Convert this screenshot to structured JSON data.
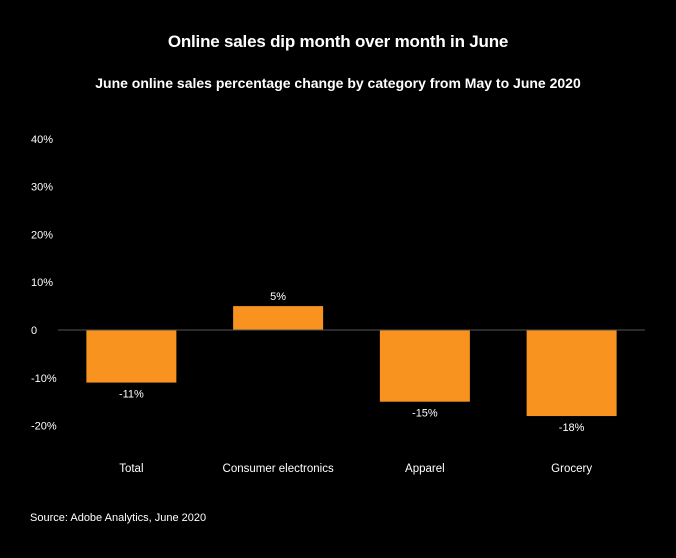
{
  "chart_data": {
    "type": "bar",
    "title": "Online sales dip month over month in June",
    "subtitle": "June online sales percentage change by category from May to June 2020",
    "categories": [
      "Total",
      "Consumer electronics",
      "Apparel",
      "Grocery"
    ],
    "values": [
      -11,
      5,
      -15,
      -18
    ],
    "data_labels": [
      "-11%",
      "5%",
      "-15%",
      "-18%"
    ],
    "y_ticks": [
      40,
      30,
      20,
      10,
      0,
      -10,
      -20
    ],
    "y_tick_labels": [
      "40%",
      "30%",
      "20%",
      "10%",
      "0",
      "-10%",
      "-20%"
    ],
    "ylim": [
      -20,
      40
    ],
    "grid": false,
    "bar_color": "#f7931e",
    "source": "Source: Adobe Analytics, June 2020"
  }
}
